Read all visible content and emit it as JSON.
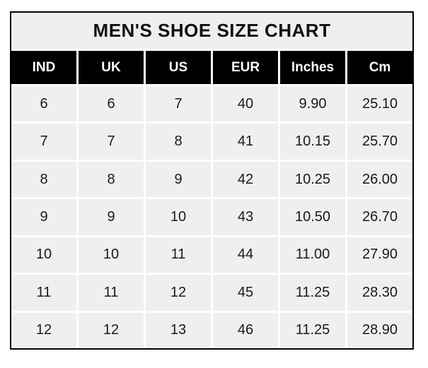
{
  "table": {
    "title": "MEN'S SHOE SIZE CHART",
    "columns": [
      "IND",
      "UK",
      "US",
      "EUR",
      "Inches",
      "Cm"
    ],
    "rows": [
      [
        "6",
        "6",
        "7",
        "40",
        "9.90",
        "25.10"
      ],
      [
        "7",
        "7",
        "8",
        "41",
        "10.15",
        "25.70"
      ],
      [
        "8",
        "8",
        "9",
        "42",
        "10.25",
        "26.00"
      ],
      [
        "9",
        "9",
        "10",
        "43",
        "10.50",
        "26.70"
      ],
      [
        "10",
        "10",
        "11",
        "44",
        "11.00",
        "27.90"
      ],
      [
        "11",
        "11",
        "12",
        "45",
        "11.25",
        "28.30"
      ],
      [
        "12",
        "12",
        "13",
        "46",
        "11.25",
        "28.90"
      ]
    ]
  },
  "colors": {
    "page_bg": "#ffffff",
    "outer_border": "#000000",
    "title_bg": "#efefef",
    "header_bg": "#000000",
    "header_text": "#ffffff",
    "cell_bg": "#efefef",
    "cell_text": "#1a1a1a",
    "separator": "#ffffff"
  },
  "chart_data": {
    "type": "table",
    "title": "MEN'S SHOE SIZE CHART",
    "columns": [
      "IND",
      "UK",
      "US",
      "EUR",
      "Inches",
      "Cm"
    ],
    "rows": [
      [
        6,
        6,
        7,
        40,
        9.9,
        25.1
      ],
      [
        7,
        7,
        8,
        41,
        10.15,
        25.7
      ],
      [
        8,
        8,
        9,
        42,
        10.25,
        26.0
      ],
      [
        9,
        9,
        10,
        43,
        10.5,
        26.7
      ],
      [
        10,
        10,
        11,
        44,
        11.0,
        27.9
      ],
      [
        11,
        11,
        12,
        45,
        11.25,
        28.3
      ],
      [
        12,
        12,
        13,
        46,
        11.25,
        28.9
      ]
    ]
  }
}
